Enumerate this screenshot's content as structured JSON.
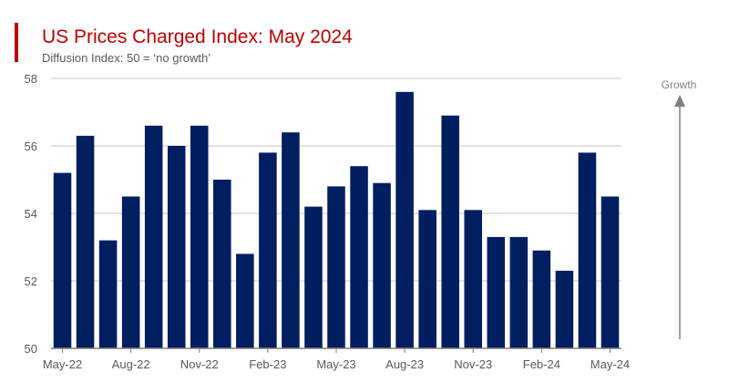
{
  "colors": {
    "accent": "#c00000",
    "bar": "#001e60",
    "grid": "#d9d9d9",
    "axis": "#808080",
    "text": "#595959"
  },
  "header": {
    "title": "US Prices Charged Index: May 2024",
    "subtitle": "Diffusion Index: 50 = ‘no growth’"
  },
  "annotation": {
    "label": "Growth",
    "icon": "up-arrow-icon"
  },
  "chart_data": {
    "type": "bar",
    "title": "US Prices Charged Index: May 2024",
    "subtitle": "Diffusion Index: 50 = ‘no growth’",
    "categories": [
      "May-22",
      "Jun-22",
      "Jul-22",
      "Aug-22",
      "Sep-22",
      "Oct-22",
      "Nov-22",
      "Dec-22",
      "Jan-23",
      "Feb-23",
      "Mar-23",
      "Apr-23",
      "May-23",
      "Jun-23",
      "Jul-23",
      "Aug-23",
      "Sep-23",
      "Oct-23",
      "Nov-23",
      "Dec-23",
      "Jan-24",
      "Feb-24",
      "Mar-24",
      "Apr-24",
      "May-24"
    ],
    "values": [
      55.2,
      56.3,
      53.2,
      54.5,
      56.6,
      56.0,
      56.6,
      55.0,
      52.8,
      55.8,
      56.4,
      54.2,
      54.8,
      55.4,
      54.9,
      57.6,
      54.1,
      56.9,
      54.1,
      53.3,
      53.3,
      52.9,
      52.3,
      55.8,
      54.5
    ],
    "tick_labels": [
      "May-22",
      "Aug-22",
      "Nov-22",
      "Feb-23",
      "May-23",
      "Aug-23",
      "Nov-23",
      "Feb-24",
      "May-24"
    ],
    "tick_every": 3,
    "xlabel": "",
    "ylabel": "",
    "ylim": [
      50,
      58
    ],
    "yticks": [
      50,
      52,
      54,
      56,
      58
    ],
    "grid": true,
    "legend": "none"
  }
}
